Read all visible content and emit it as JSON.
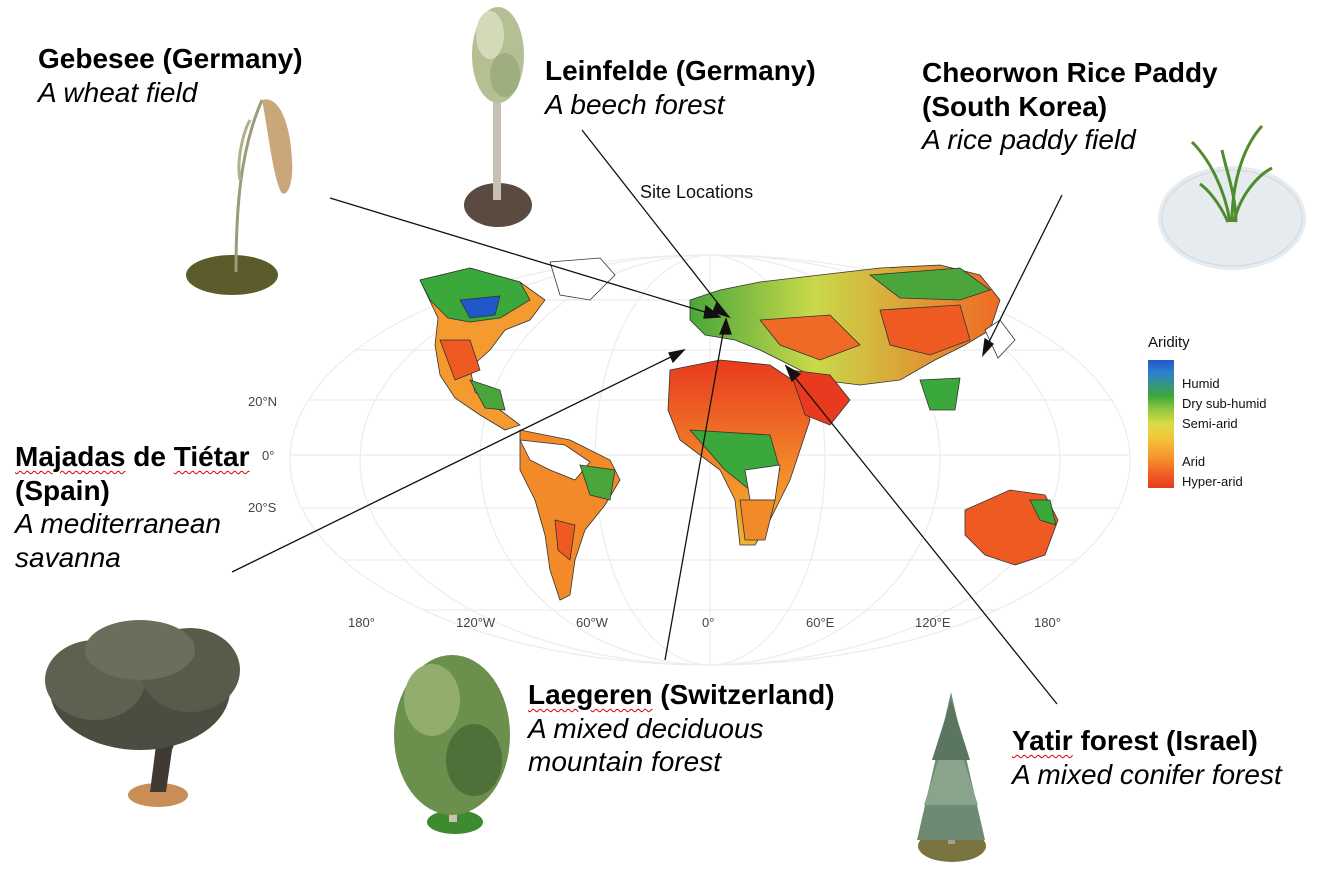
{
  "map_title": "Site Locations",
  "legend": {
    "title": "Aridity",
    "labels": [
      "Humid",
      "Dry sub-humid",
      "Semi-arid",
      "Arid",
      "Hyper-arid"
    ]
  },
  "axes": {
    "lon": [
      "180°",
      "120°W",
      "60°W",
      "0°",
      "60°E",
      "120°E",
      "180°"
    ],
    "lat": [
      "20°N",
      "0°",
      "20°S"
    ]
  },
  "sites": [
    {
      "name": "Gebesee (Germany)",
      "desc": "A wheat field",
      "icon": "wheat-icon"
    },
    {
      "name": "Leinfelde (Germany)",
      "desc": "A beech forest",
      "icon": "beech-tree-icon"
    },
    {
      "name": "Cheorwon Rice Paddy (South Korea)",
      "name_line1": "Cheorwon Rice Paddy",
      "name_line2": "(South Korea)",
      "desc": "A rice paddy field",
      "icon": "rice-plant-icon"
    },
    {
      "name": "Majadas de Tiétar (Spain)",
      "name_part1": "Majadas",
      "name_part2": " de ",
      "name_part3": "Tiétar",
      "name_line2": "(Spain)",
      "desc_line1": "A mediterranean",
      "desc_line2": "savanna",
      "icon": "oak-tree-icon"
    },
    {
      "name": "Laegeren (Switzerland)",
      "name_part1": "Laegeren",
      "name_part2": " (Switzerland)",
      "desc_line1": "A mixed deciduous",
      "desc_line2": "mountain forest",
      "icon": "deciduous-tree-icon"
    },
    {
      "name": "Yatir forest (Israel)",
      "name_part1": "Yatir",
      "name_part2": " forest (Israel)",
      "desc": "A mixed conifer forest",
      "icon": "conifer-tree-icon"
    }
  ],
  "colors": {
    "humid": "#2157c8",
    "dry_subhumid": "#3aa83a",
    "semi_arid": "#d9dc45",
    "arid": "#f59a2e",
    "hyper_arid": "#e83a1e",
    "spellcheck_underline": "#dd0000"
  }
}
